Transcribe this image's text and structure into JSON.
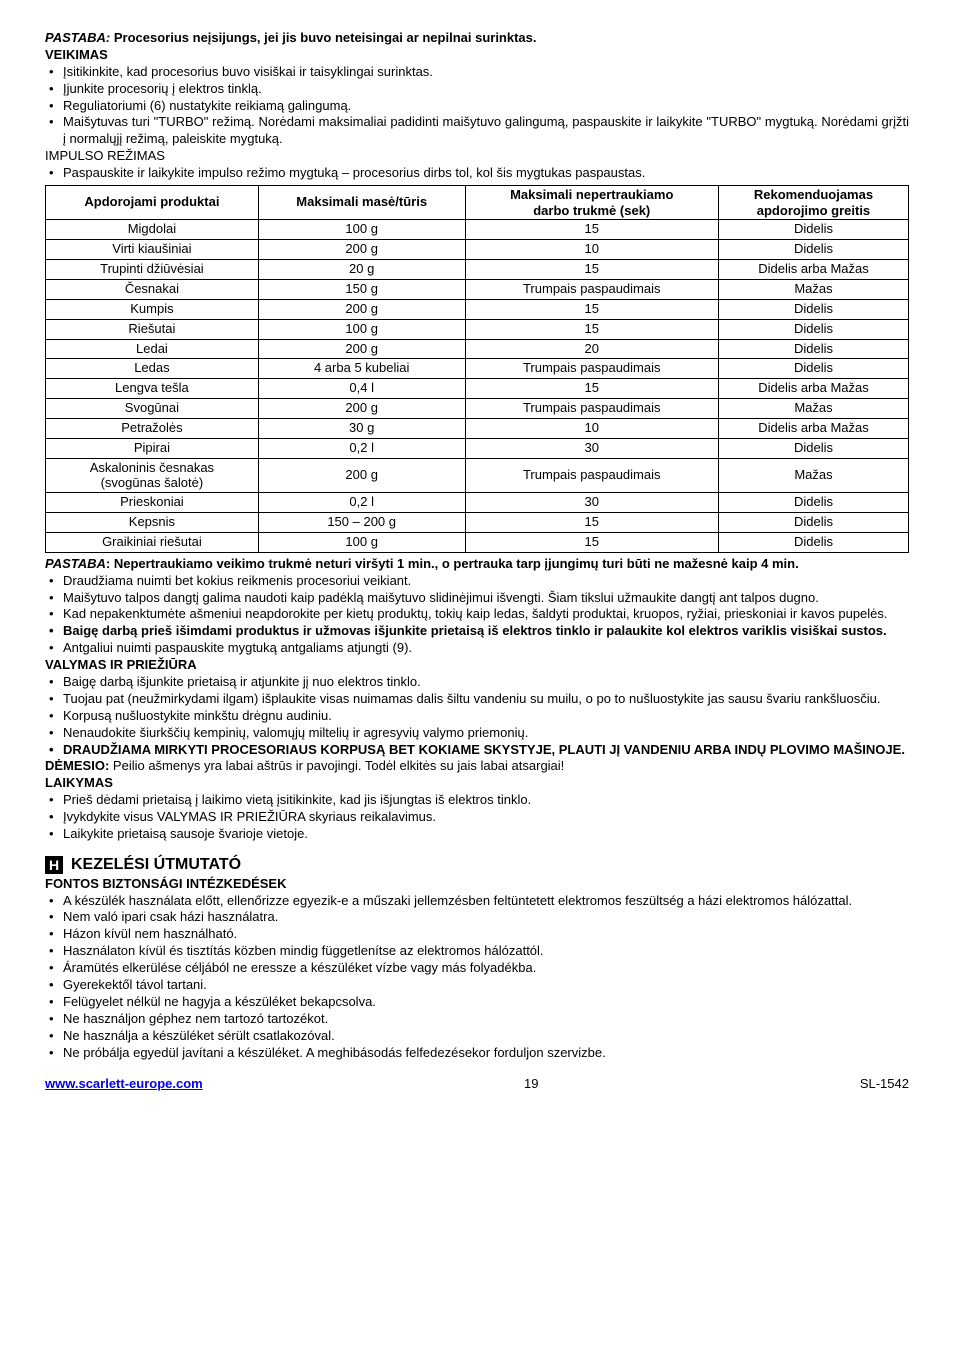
{
  "pastaba1_label": "PASTABA:",
  "pastaba1_text": "Procesorius neįsijungs, jei jis buvo neteisingai ar nepilnai surinktas.",
  "veikimas": "VEIKIMAS",
  "veikimas_items": [
    "Įsitikinkite, kad procesorius buvo visiškai ir taisyklingai surinktas.",
    "Įjunkite procesorių į elektros tinklą.",
    "Reguliatoriumi (6) nustatykite reikiamą galingumą.",
    "Maišytuvas turi \"TURBO\" režimą. Norėdami maksimaliai padidinti maišytuvo galingumą, paspauskite ir laikykite \"TURBO\" mygtuką. Norėdami grįžti į normalųjį režimą, paleiskite mygtuką."
  ],
  "impulso": "IMPULSO REŽIMAS",
  "impulso_items": [
    "Paspauskite ir laikykite impulso režimo mygtuką – procesorius dirbs tol, kol šis mygtukas paspaustas."
  ],
  "table_headers": {
    "col1": "Apdorojami produktai",
    "col2": "Maksimali masė/tūris",
    "col3a": "Maksimali nepertraukiamo",
    "col3b": "darbo trukmė (sek)",
    "col4a": "Rekomenduojamas",
    "col4b": "apdorojimo greitis"
  },
  "table_rows": [
    [
      "Migdolai",
      "100 g",
      "15",
      "Didelis"
    ],
    [
      "Virti kiaušiniai",
      "200 g",
      "10",
      "Didelis"
    ],
    [
      "Trupinti džiūvėsiai",
      "20 g",
      "15",
      "Didelis arba Mažas"
    ],
    [
      "Česnakai",
      "150 g",
      "Trumpais paspaudimais",
      "Mažas"
    ],
    [
      "Kumpis",
      "200 g",
      "15",
      "Didelis"
    ],
    [
      "Riešutai",
      "100 g",
      "15",
      "Didelis"
    ],
    [
      "Ledai",
      "200 g",
      "20",
      "Didelis"
    ],
    [
      "Ledas",
      "4 arba 5 kubeliai",
      "Trumpais paspaudimais",
      "Didelis"
    ],
    [
      "Lengva tešla",
      "0,4 l",
      "15",
      "Didelis arba Mažas"
    ],
    [
      "Svogūnai",
      "200 g",
      "Trumpais paspaudimais",
      "Mažas"
    ],
    [
      "Petražolės",
      "30 g",
      "10",
      "Didelis arba Mažas"
    ],
    [
      "Pipirai",
      "0,2 l",
      "30",
      "Didelis"
    ]
  ],
  "table_row_split": {
    "col1a": "Askaloninis česnakas",
    "col1b": "(svogūnas šalotė)",
    "col2": "200 g",
    "col3": "Trumpais paspaudimais",
    "col4": "Mažas"
  },
  "table_rows2": [
    [
      "Prieskoniai",
      "0,2 l",
      "30",
      "Didelis"
    ],
    [
      "Kepsnis",
      "150 – 200 g",
      "15",
      "Didelis"
    ],
    [
      "Graikiniai riešutai",
      "100 g",
      "15",
      "Didelis"
    ]
  ],
  "pastaba2_label": "PASTABA",
  "pastaba2_text": ": Nepertraukiamo veikimo trukmė neturi viršyti 1 min., o pertrauka tarp įjungimų turi būti ne mažesnė kaip 4 min.",
  "pastaba2_items": [
    "Draudžiama nuimti bet kokius reikmenis procesoriui veikiant.",
    "Maišytuvo talpos dangtį galima naudoti kaip padėklą maišytuvo slidinėjimui išvengti. Šiam tikslui užmaukite dangtį ant talpos dugno.",
    "Kad nepakenktumėte ašmeniui neapdorokite per kietų produktų, tokių kaip ledas, šaldyti produktai, kruopos, ryžiai, prieskoniai ir kavos pupelės."
  ],
  "bold_item1": "Baigę darbą prieš išimdami produktus ir užmovas išjunkite prietaisą iš elektros tinklo ir palaukite kol elektros variklis visiškai sustos.",
  "pastaba2_items2": [
    "Antgaliui nuimti paspauskite mygtuką antgaliams atjungti (9)."
  ],
  "valymas": "VALYMAS IR PRIEŽIŪRA",
  "valymas_items": [
    "Baigę darbą išjunkite prietaisą ir atjunkite jį nuo elektros tinklo.",
    "Tuojau pat (neužmirkydami ilgam) išplaukite visas nuimamas dalis šiltu vandeniu su muilu, o po to nušluostykite jas sausu švariu rankšluosčiu.",
    "Korpusą nušluostykite minkštu drėgnu audiniu.",
    "Nenaudokite šiurkščių kempinių, valomųjų miltelių ir agresyvių valymo priemonių."
  ],
  "bold_item2": "DRAUDŽIAMA MIRKYTI PROCESORIAUS KORPUSĄ BET KOKIAME SKYSTYJE, PLAUTI JĮ VANDENIU ARBA INDŲ PLOVIMO MAŠINOJE.",
  "demesio_label": "DĖMESIO:",
  "demesio_text": "Peilio ašmenys yra labai aštrūs ir pavojingi. Todėl elkitės su jais labai atsargiai!",
  "laikymas": "LAIKYMAS",
  "laikymas_items": [
    "Prieš dėdami prietaisą į laikimo vietą įsitikinkite, kad jis išjungtas iš elektros tinklo.",
    "Įvykdykite visus VALYMAS IR PRIEŽIŪRA skyriaus reikalavimus.",
    "Laikykite prietaisą sausoje švarioje vietoje."
  ],
  "kezelesi": "KEZELÉSI ÚTMUTATÓ",
  "fontos": "FONTOS BIZTONSÁGI INTÉZKEDÉSEK",
  "fontos_items": [
    "A készülék használata előtt, ellenőrizze egyezik-e a műszaki jellemzésben feltüntetett elektromos feszültség a házi elektromos hálózattal.",
    "Nem való ipari csak házi használatra.",
    "Házon kívül nem használható.",
    "Használaton kívül és tisztítás közben mindig függetlenítse az elektromos hálózattól.",
    "Áramütés elkerülése céljából ne eressze a készüléket vízbe vagy más folyadékba.",
    "Gyerekektől távol tartani.",
    "Felügyelet nélkül ne hagyja a készüléket bekapcsolva.",
    "Ne használjon géphez nem tartozó tartozékot.",
    "Ne használja a készüléket sérült csatlakozóval.",
    "Ne próbálja egyedül javítani a készüléket. A meghibásodás felfedezésekor forduljon szervizbe."
  ],
  "footer_url": "www.scarlett-europe.com",
  "footer_page": "19",
  "footer_model": "SL-1542"
}
